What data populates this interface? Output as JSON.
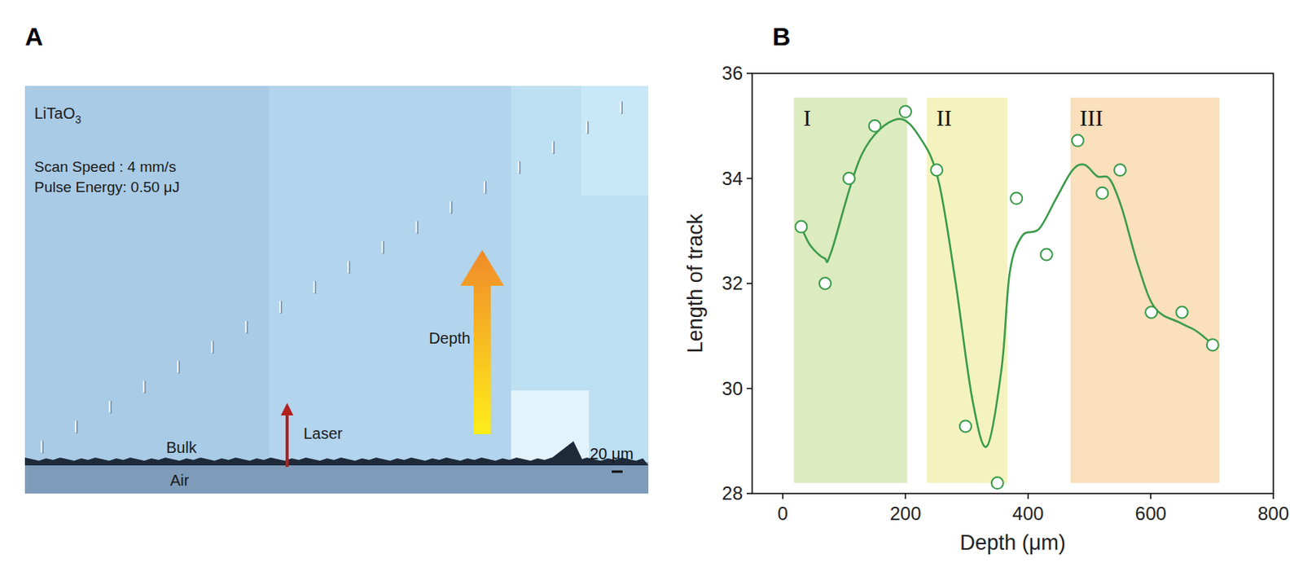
{
  "panel_a": {
    "panel_letter": "A",
    "material": "LiTaO3",
    "scan_speed": "Scan Speed : 4 mm/s",
    "pulse_energy": "Pulse Energy: 0.50 μJ",
    "labels": {
      "bulk": "Bulk",
      "air": "Air",
      "laser": "Laser",
      "depth": "Depth"
    },
    "scale_bar": "20 μm"
  },
  "chart_data": {
    "type": "scatter",
    "panel_letter": "B",
    "x_label": "Depth (μm)",
    "y_label": "Length of track",
    "xlim": [
      -50,
      800
    ],
    "xticks": [
      0,
      200,
      400,
      600,
      800
    ],
    "ylim": [
      28,
      36
    ],
    "yticks": [
      28,
      30,
      32,
      34,
      36
    ],
    "grid": false,
    "regions": [
      {
        "label": "I",
        "x0": 18,
        "x1": 203,
        "y0": 28.2,
        "y1": 35.54,
        "color": "#dcebc0"
      },
      {
        "label": "II",
        "x0": 235,
        "x1": 366,
        "y0": 28.2,
        "y1": 35.54,
        "color": "#f4f3c0"
      },
      {
        "label": "III",
        "x0": 469,
        "x1": 712,
        "y0": 28.2,
        "y1": 35.54,
        "color": "#fae0bc"
      }
    ],
    "series": [
      {
        "type": "scatter",
        "marker": "circle",
        "color": "#3a9b4a",
        "x": [
          30,
          69,
          108,
          150,
          200,
          251,
          298,
          350,
          381,
          430,
          481,
          521,
          550,
          601,
          651,
          701
        ],
        "values": [
          33.08,
          32.0,
          34.0,
          35.0,
          35.27,
          34.16,
          29.28,
          28.2,
          33.62,
          32.55,
          34.72,
          33.72,
          34.16,
          31.45,
          31.45,
          30.83
        ]
      },
      {
        "type": "line",
        "line_style": "solid",
        "color": "#3a9b4a",
        "x": [
          30,
          45,
          68,
          79,
          129,
          187,
          228,
          255,
          282,
          309,
          333,
          357,
          370,
          390,
          418,
          445,
          472,
          492,
          513,
          533,
          553,
          580,
          607,
          648,
          675,
          702
        ],
        "values": [
          33.08,
          32.72,
          32.48,
          32.6,
          34.46,
          35.13,
          34.7,
          33.9,
          32.0,
          29.8,
          28.9,
          30.4,
          32.2,
          32.9,
          33.04,
          33.6,
          34.15,
          34.26,
          34.04,
          33.99,
          33.43,
          32.32,
          31.53,
          31.25,
          31.09,
          30.83
        ]
      }
    ]
  }
}
